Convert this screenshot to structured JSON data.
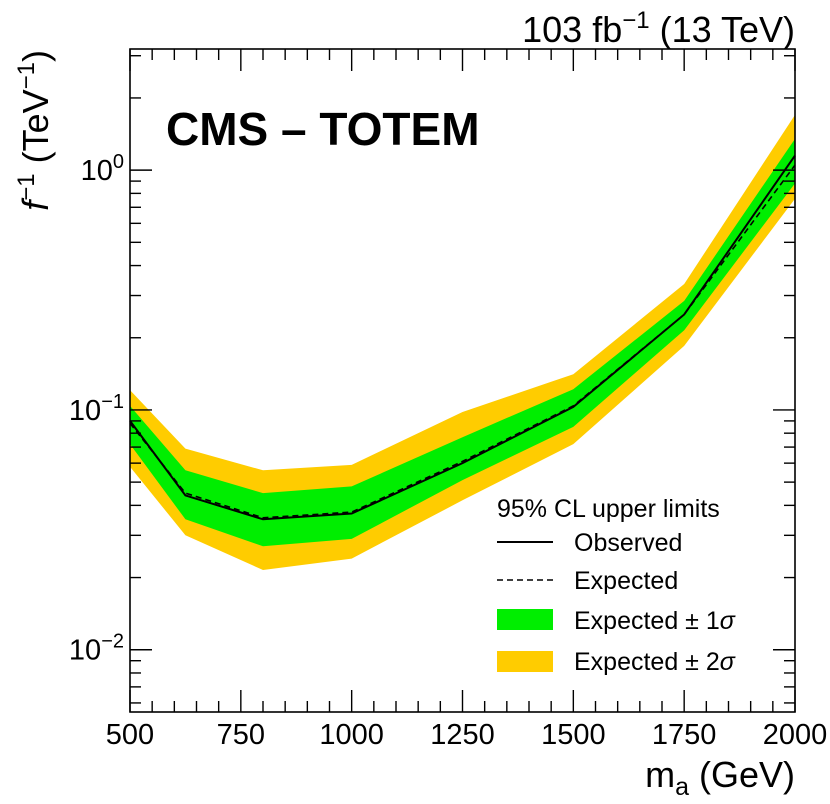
{
  "chart_data": {
    "type": "line",
    "title_right": {
      "pre": "103 fb",
      "sup": "−1",
      "post": " (13 TeV)"
    },
    "experiment_label": "CMS – TOTEM",
    "xlabel": {
      "main": "m",
      "sub": "a",
      "unit": " (GeV)"
    },
    "ylabel": {
      "main": "f",
      "sup": "−1",
      "unit_pre": " (TeV",
      "unit_sup": "−1",
      "unit_post": ")"
    },
    "xlim": [
      500,
      2000
    ],
    "ylim": [
      0.0055,
      3.2
    ],
    "yscale": "log",
    "x_ticks": [
      500,
      750,
      1000,
      1250,
      1500,
      1750,
      2000
    ],
    "x_tick_labels": [
      "500",
      "750",
      "1000",
      "1250",
      "1500",
      "1750",
      "2000"
    ],
    "y_ticks": [
      {
        "value": 0.01,
        "base": "10",
        "exp": "−2"
      },
      {
        "value": 0.1,
        "base": "10",
        "exp": "−1"
      },
      {
        "value": 1,
        "base": "10",
        "exp": "0"
      }
    ],
    "x": [
      500,
      625,
      800,
      1000,
      1250,
      1500,
      1750,
      2000
    ],
    "series": [
      {
        "name": "Observed",
        "values": [
          0.09,
          0.044,
          0.035,
          0.037,
          0.06,
          0.103,
          0.25,
          1.15
        ]
      },
      {
        "name": "Expected",
        "values": [
          0.088,
          0.045,
          0.0355,
          0.0375,
          0.061,
          0.104,
          0.25,
          1.05
        ]
      },
      {
        "name": "Expected ± 1σ",
        "lower": [
          0.072,
          0.035,
          0.027,
          0.029,
          0.051,
          0.085,
          0.215,
          0.88
        ],
        "upper": [
          0.104,
          0.056,
          0.045,
          0.048,
          0.077,
          0.122,
          0.285,
          1.35
        ]
      },
      {
        "name": "Expected ± 2σ",
        "lower": [
          0.058,
          0.03,
          0.0215,
          0.024,
          0.042,
          0.072,
          0.185,
          0.76
        ],
        "upper": [
          0.121,
          0.069,
          0.056,
          0.059,
          0.098,
          0.141,
          0.335,
          1.7
        ]
      }
    ],
    "legend": {
      "position": "bottom-right",
      "title": "95% CL upper limits",
      "entries": [
        {
          "label": "Observed",
          "style": "solid"
        },
        {
          "label": "Expected",
          "style": "dashed"
        },
        {
          "label_pre": "Expected ± 1",
          "label_sigma": "σ",
          "style": "band",
          "color": "#00ee00"
        },
        {
          "label_pre": "Expected ± 2",
          "label_sigma": "σ",
          "style": "band",
          "color": "#ffcc00"
        }
      ]
    },
    "colors": {
      "band1": "#00ee00",
      "band2": "#ffcc00",
      "line": "#000000"
    }
  }
}
